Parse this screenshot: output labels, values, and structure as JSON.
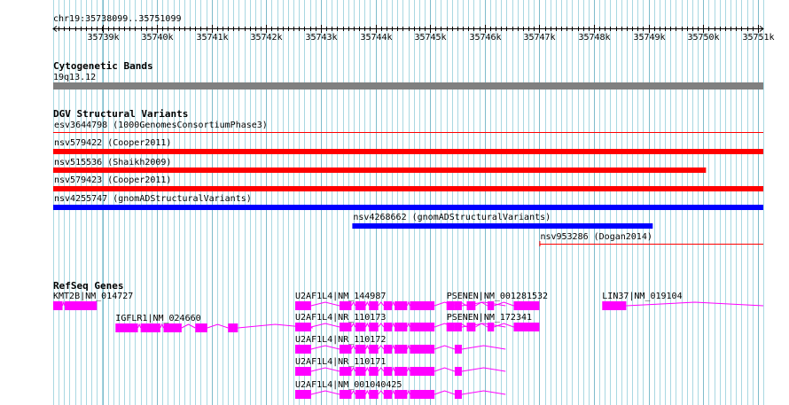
{
  "ruler": {
    "label": "chr19:35738099..35751099",
    "start": 35738099,
    "end": 35751099,
    "ticks": [
      {
        "pos": 35739000,
        "label": "35739k"
      },
      {
        "pos": 35740000,
        "label": "35740k"
      },
      {
        "pos": 35741000,
        "label": "35741k"
      },
      {
        "pos": 35742000,
        "label": "35742k"
      },
      {
        "pos": 35743000,
        "label": "35743k"
      },
      {
        "pos": 35744000,
        "label": "35744k"
      },
      {
        "pos": 35745000,
        "label": "35745k"
      },
      {
        "pos": 35746000,
        "label": "35746k"
      },
      {
        "pos": 35747000,
        "label": "35747k"
      },
      {
        "pos": 35748000,
        "label": "35748k"
      },
      {
        "pos": 35749000,
        "label": "35749k"
      },
      {
        "pos": 35750000,
        "label": "35750k"
      },
      {
        "pos": 35751000,
        "label": "35751k"
      }
    ]
  },
  "tracks": {
    "cytoband": {
      "title": "Cytogenetic Bands",
      "band_label": "19q13.12",
      "color": "#808080"
    },
    "dgv": {
      "title": "DGV Structural Variants",
      "features": [
        {
          "label": "esv3644798 (1000GenomesConsortiumPhase3)",
          "start": 35738099,
          "end": 35751099,
          "color": "#ff0000",
          "style": "thin"
        },
        {
          "label": "nsv579422 (Cooper2011)",
          "start": 35738099,
          "end": 35751099,
          "color": "#ff0000",
          "style": "thick"
        },
        {
          "label": "nsv515536 (Shaikh2009)",
          "start": 35738099,
          "end": 35750050,
          "color": "#ff0000",
          "style": "thick"
        },
        {
          "label": "nsv579423 (Cooper2011)",
          "start": 35738099,
          "end": 35751099,
          "color": "#ff0000",
          "style": "thick"
        },
        {
          "label": "nsv4255747 (gnomADStructuralVariants)",
          "start": 35738099,
          "end": 35751099,
          "color": "#0000ff",
          "style": "thick"
        },
        {
          "label": "nsv4268662 (gnomADStructuralVariants)",
          "start": 35743575,
          "end": 35749075,
          "color": "#0000ff",
          "style": "thick"
        },
        {
          "label": "nsv953286 (Dogan2014)",
          "start": 35747000,
          "end": 35751099,
          "color": "#ff0000",
          "style": "thin"
        }
      ]
    },
    "refseq": {
      "title": "RefSeq Genes",
      "color": "#ff00ff",
      "genes": [
        {
          "label": "KMT2B|NM_014727",
          "start": 35738099,
          "end": 35738899,
          "exons": [
            [
              35738099,
              35738270
            ],
            [
              35738310,
              35738899
            ]
          ]
        },
        {
          "label": "IGFLR1|NM_024660",
          "start": 35739240,
          "end": 35742850,
          "exons": [
            [
              35739240,
              35739650
            ],
            [
              35739700,
              35740060
            ],
            [
              35740120,
              35740450
            ],
            [
              35740700,
              35740920
            ],
            [
              35741300,
              35741480
            ]
          ]
        },
        {
          "label": "U2AF1L4|NM_144987",
          "start": 35742530,
          "end": 35746380,
          "exons": [
            [
              35742530,
              35742820
            ],
            [
              35743340,
              35743560
            ],
            [
              35743630,
              35743820
            ],
            [
              35743880,
              35744050
            ],
            [
              35744150,
              35744300
            ],
            [
              35744350,
              35744580
            ],
            [
              35744630,
              35745080
            ],
            [
              35745450,
              35745580
            ]
          ]
        },
        {
          "label": "U2AF1L4|NR_110173",
          "start": 35742530,
          "end": 35746380,
          "exons": [
            [
              35742530,
              35742820
            ],
            [
              35743340,
              35743560
            ],
            [
              35743630,
              35743820
            ],
            [
              35743880,
              35744050
            ],
            [
              35744150,
              35744300
            ],
            [
              35744350,
              35744580
            ],
            [
              35744630,
              35745080
            ],
            [
              35745450,
              35745580
            ]
          ]
        },
        {
          "label": "U2AF1L4|NR_110172",
          "start": 35742530,
          "end": 35746380,
          "exons": [
            [
              35742530,
              35742820
            ],
            [
              35743340,
              35743560
            ],
            [
              35743630,
              35743820
            ],
            [
              35743880,
              35744050
            ],
            [
              35744150,
              35744300
            ],
            [
              35744350,
              35744580
            ],
            [
              35744630,
              35745080
            ],
            [
              35745450,
              35745580
            ]
          ]
        },
        {
          "label": "U2AF1L4|NR_110171",
          "start": 35742530,
          "end": 35746380,
          "exons": [
            [
              35742530,
              35742820
            ],
            [
              35743340,
              35743560
            ],
            [
              35743630,
              35743820
            ],
            [
              35743880,
              35744050
            ],
            [
              35744150,
              35744300
            ],
            [
              35744350,
              35744580
            ],
            [
              35744630,
              35745080
            ],
            [
              35745450,
              35745580
            ]
          ]
        },
        {
          "label": "U2AF1L4|NM_001040425",
          "start": 35742530,
          "end": 35746380,
          "exons": [
            [
              35742530,
              35742820
            ],
            [
              35743340,
              35743560
            ],
            [
              35743630,
              35743820
            ],
            [
              35743880,
              35744050
            ],
            [
              35744150,
              35744300
            ],
            [
              35744350,
              35744580
            ],
            [
              35744630,
              35745080
            ],
            [
              35745450,
              35745580
            ]
          ]
        },
        {
          "label": "PSENEN|NM_001281532",
          "start": 35745300,
          "end": 35747000,
          "exons": [
            [
              35745300,
              35745450
            ],
            [
              35745670,
              35745830
            ],
            [
              35746050,
              35746170
            ],
            [
              35746530,
              35747000
            ]
          ]
        },
        {
          "label": "PSENEN|NM_172341",
          "start": 35745300,
          "end": 35747000,
          "exons": [
            [
              35745300,
              35745450
            ],
            [
              35745670,
              35745830
            ],
            [
              35746050,
              35746170
            ],
            [
              35746530,
              35747000
            ]
          ]
        },
        {
          "label": "LIN37|NM_019104",
          "start": 35748150,
          "end": 35751099,
          "exons": [
            [
              35748150,
              35748590
            ]
          ]
        }
      ]
    }
  }
}
